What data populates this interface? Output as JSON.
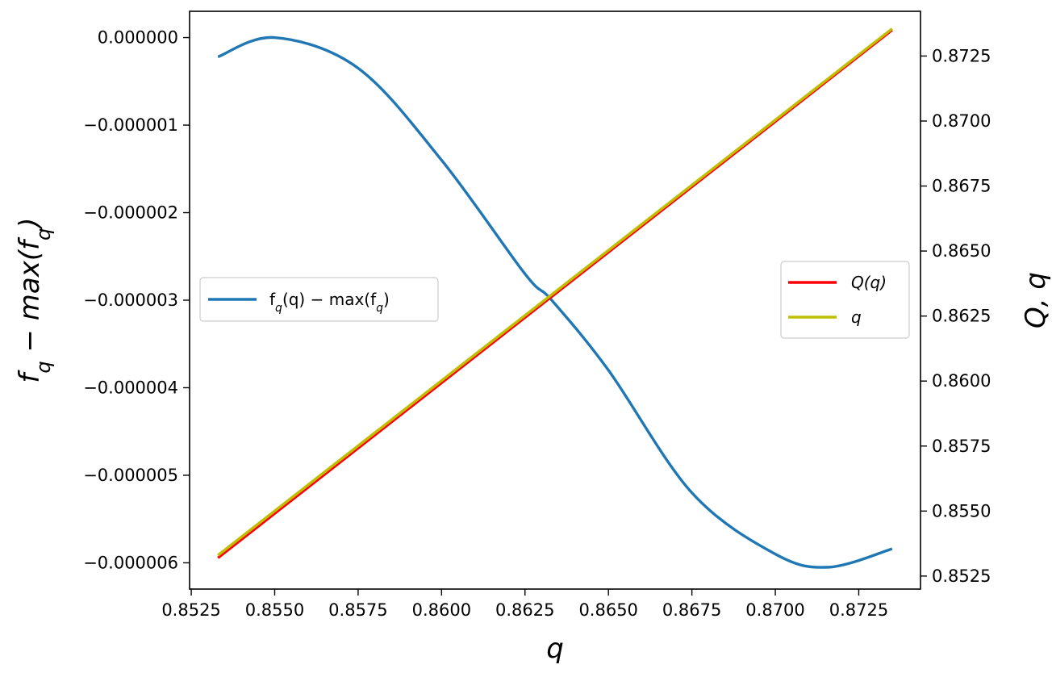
{
  "chart_data": {
    "type": "line",
    "x_label": "q",
    "y_left_label": "f_q − max(f_q)",
    "y_right_label": "Q, q",
    "x_ticks": [
      "0.8525",
      "0.8550",
      "0.8575",
      "0.8600",
      "0.8625",
      "0.8650",
      "0.8675",
      "0.8700",
      "0.8725"
    ],
    "y_left_ticks": [
      "0.000000",
      "−0.000001",
      "−0.000002",
      "−0.000003",
      "−0.000004",
      "−0.000005",
      "−0.000006"
    ],
    "y_right_ticks": [
      "0.8525",
      "0.8550",
      "0.8575",
      "0.8600",
      "0.8625",
      "0.8650",
      "0.8675",
      "0.8700",
      "0.8725"
    ],
    "xlim": [
      0.85245,
      0.87435
    ],
    "y_left_lim": [
      -6.3e-06,
      3e-07
    ],
    "y_right_lim": [
      0.852,
      0.87422
    ],
    "grid": false,
    "left_legend": {
      "placement": "center-left",
      "entries": [
        {
          "text": "f_q(q) − max(f_q)",
          "color": "#1f77b4"
        }
      ]
    },
    "right_legend": {
      "placement": "center-right",
      "entries": [
        {
          "text": "Q(q)",
          "color": "#ff0000"
        },
        {
          "text": "q",
          "color": "#bfbf00"
        }
      ]
    },
    "series": [
      {
        "name": "f_q(q) − max(f_q)",
        "axis": "left",
        "color": "#1f77b4",
        "x": [
          0.8533,
          0.855,
          0.8575,
          0.86,
          0.8625,
          0.8633,
          0.865,
          0.8675,
          0.87,
          0.8716,
          0.8735
        ],
        "y": [
          -2.2e-07,
          0.0,
          -3.5e-07,
          -1.4e-06,
          -2.7e-06,
          -3e-06,
          -3.8e-06,
          -5.2e-06,
          -5.9e-06,
          -6.05e-06,
          -5.84e-06
        ]
      },
      {
        "name": "Q(q)",
        "axis": "right",
        "color": "#ff0000",
        "x": [
          0.8533,
          0.8735
        ],
        "y": [
          0.8532,
          0.8735
        ]
      },
      {
        "name": "q",
        "axis": "right",
        "color": "#bfbf00",
        "x": [
          0.8533,
          0.8735
        ],
        "y": [
          0.8533,
          0.87355
        ]
      }
    ]
  }
}
